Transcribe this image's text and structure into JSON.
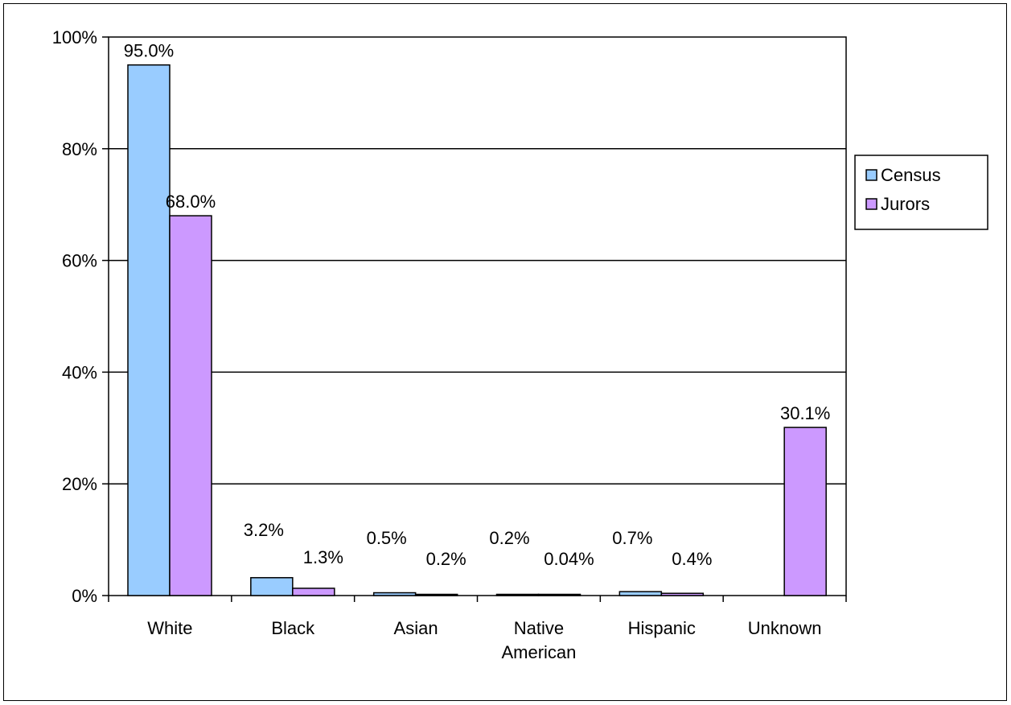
{
  "chart_data": {
    "type": "bar",
    "title": "",
    "xlabel": "",
    "ylabel": "",
    "categories": [
      [
        "White"
      ],
      [
        "Black"
      ],
      [
        "Asian"
      ],
      [
        "Native",
        "American"
      ],
      [
        "Hispanic"
      ],
      [
        "Unknown"
      ]
    ],
    "series": [
      {
        "name": "Census",
        "color": "#99ccff",
        "values": [
          95.0,
          3.2,
          0.5,
          0.2,
          0.7,
          null
        ],
        "labels": [
          "95.0%",
          "3.2%",
          "0.5%",
          "0.2%",
          "0.7%",
          ""
        ]
      },
      {
        "name": "Jurors",
        "color": "#cc99ff",
        "values": [
          68.0,
          1.3,
          0.2,
          0.04,
          0.4,
          30.1
        ],
        "labels": [
          "68.0%",
          "1.3%",
          "0.2%",
          "0.04%",
          "0.4%",
          "30.1%"
        ]
      }
    ],
    "ylim": [
      0,
      100
    ],
    "yticks": [
      0,
      20,
      40,
      60,
      80,
      100
    ],
    "ytick_labels": [
      "0%",
      "20%",
      "40%",
      "60%",
      "80%",
      "100%"
    ],
    "grid": true,
    "legend_position": "right"
  }
}
